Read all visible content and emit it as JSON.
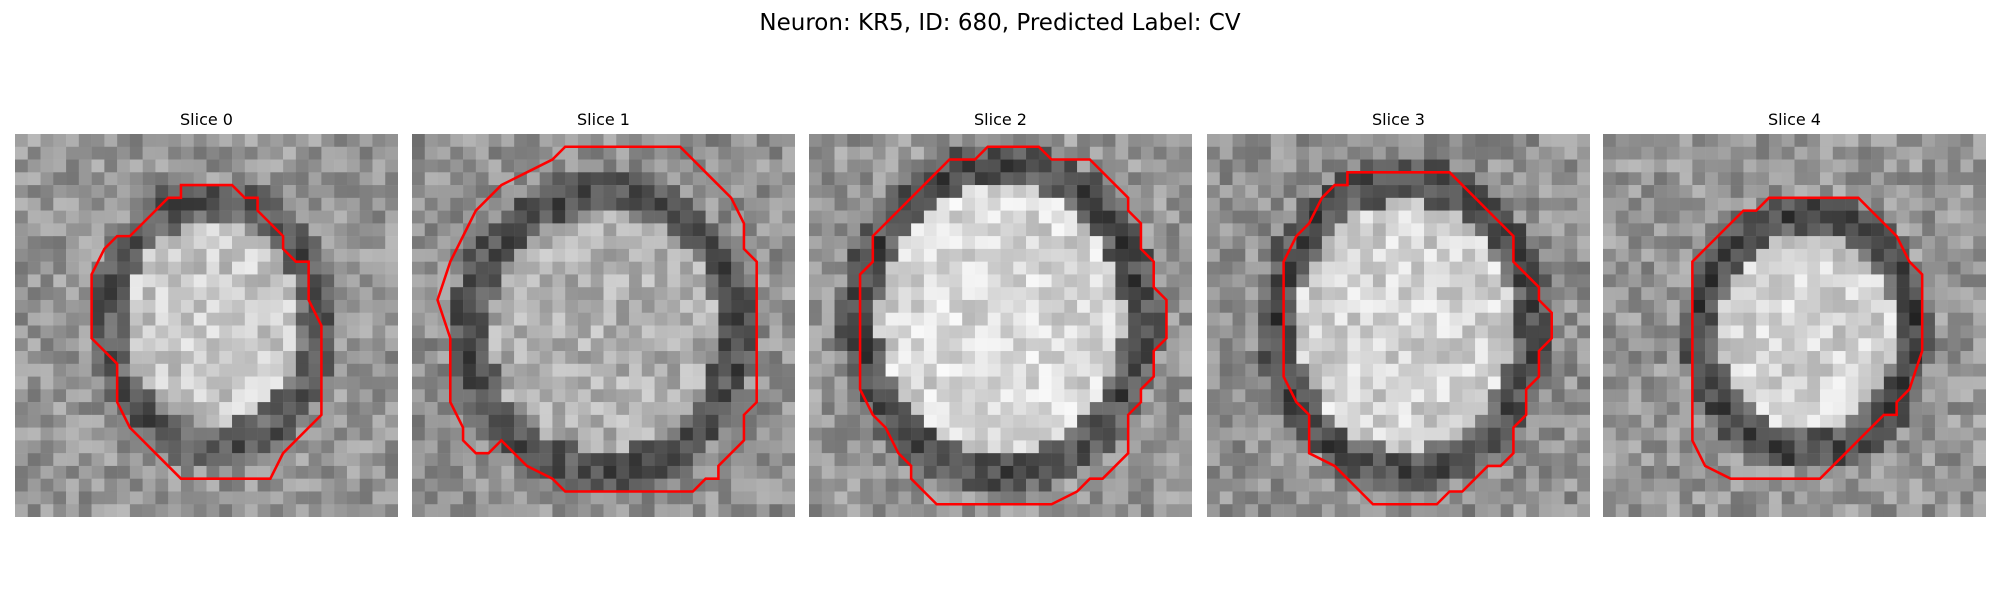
{
  "figure": {
    "title": "Neuron: KR5, ID: 680, Predicted Label: CV"
  },
  "panels": [
    {
      "title": "Slice 0",
      "outline_color": "#ff0000"
    },
    {
      "title": "Slice 1",
      "outline_color": "#ff0000"
    },
    {
      "title": "Slice 2",
      "outline_color": "#ff0000"
    },
    {
      "title": "Slice 3",
      "outline_color": "#ff0000"
    },
    {
      "title": "Slice 4",
      "outline_color": "#ff0000"
    }
  ],
  "colors": {
    "background": "#ffffff",
    "outline": "#ff0000"
  }
}
